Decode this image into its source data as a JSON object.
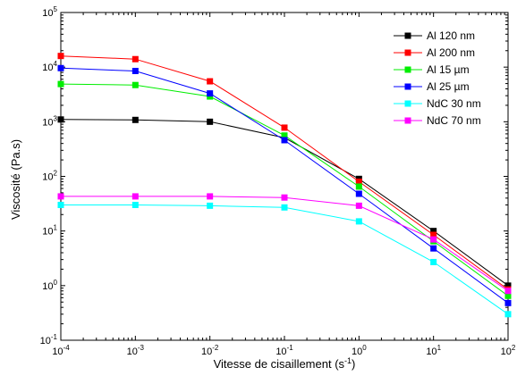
{
  "chart_data": {
    "type": "line",
    "x_scale": "log",
    "y_scale": "log",
    "xlabel_main": "Vitesse de cisaillement (s",
    "xlabel_sup": "-1",
    "xlabel_close": ")",
    "ylabel": "Viscosité (Pa.s)",
    "xlim": [
      0.0001,
      100
    ],
    "ylim": [
      0.1,
      100000
    ],
    "x_ticks": [
      {
        "base": "10",
        "exp": "-4"
      },
      {
        "base": "10",
        "exp": "-3"
      },
      {
        "base": "10",
        "exp": "-2"
      },
      {
        "base": "10",
        "exp": "-1"
      },
      {
        "base": "10",
        "exp": "0"
      },
      {
        "base": "10",
        "exp": "1"
      },
      {
        "base": "10",
        "exp": "2"
      }
    ],
    "y_ticks": [
      {
        "base": "10",
        "exp": "-1"
      },
      {
        "base": "10",
        "exp": "0"
      },
      {
        "base": "10",
        "exp": "1"
      },
      {
        "base": "10",
        "exp": "2"
      },
      {
        "base": "10",
        "exp": "3"
      },
      {
        "base": "10",
        "exp": "4"
      },
      {
        "base": "10",
        "exp": "5"
      }
    ],
    "x": [
      0.0001,
      0.001,
      0.01,
      0.1,
      1,
      10,
      100
    ],
    "series": [
      {
        "name": "Al 120 nm",
        "color": "#000000",
        "values": [
          1100,
          1080,
          1000,
          510,
          90,
          10,
          1.0
        ]
      },
      {
        "name": "Al 200 nm",
        "color": "#ff0000",
        "values": [
          16000,
          14000,
          5500,
          780,
          80,
          8.5,
          0.85
        ]
      },
      {
        "name": "Al 15 µm",
        "color": "#00ee00",
        "values": [
          4900,
          4700,
          2900,
          560,
          65,
          6.5,
          0.65
        ]
      },
      {
        "name": "Al 25 µm",
        "color": "#0000ff",
        "values": [
          9600,
          8500,
          3300,
          460,
          48,
          4.8,
          0.48
        ]
      },
      {
        "name": "NdC 30 nm",
        "color": "#00ffff",
        "values": [
          30,
          30,
          29,
          27,
          15,
          2.7,
          0.3
        ]
      },
      {
        "name": "NdC 70 nm",
        "color": "#ff00ff",
        "values": [
          43,
          43,
          43,
          41,
          29,
          7.0,
          0.8
        ]
      }
    ],
    "legend_position": "top-right"
  }
}
